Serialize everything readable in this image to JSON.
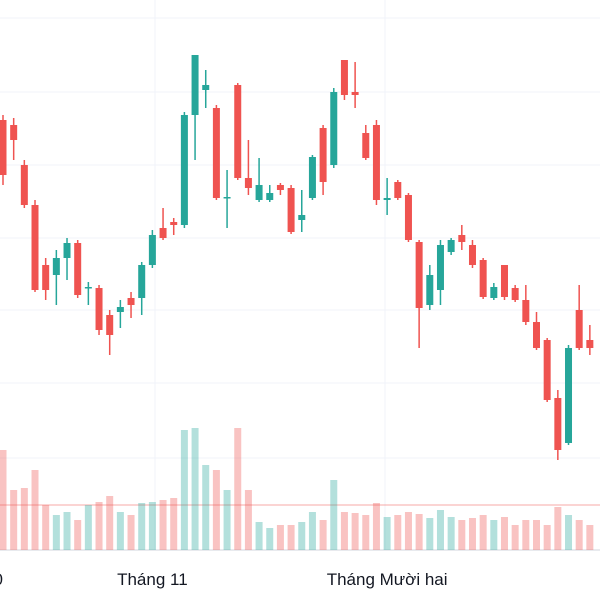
{
  "chart_data": {
    "type": "candlestick",
    "categories": [
      "0",
      null,
      null,
      null,
      null,
      null,
      null,
      null,
      null,
      null,
      null,
      null,
      null,
      null,
      "Tháng 11",
      null,
      null,
      null,
      null,
      null,
      null,
      null,
      null,
      null,
      null,
      null,
      null,
      null,
      null,
      null,
      null,
      null,
      null,
      null,
      null,
      null,
      "Tháng Mười hai",
      null,
      null,
      null,
      null,
      null,
      null,
      null,
      null,
      null,
      null,
      null,
      null,
      null,
      null,
      null,
      null,
      null,
      null,
      null
    ],
    "open": [
      480,
      475,
      435,
      395,
      335,
      325,
      342,
      357,
      312,
      312,
      285,
      288,
      302,
      302,
      335,
      372,
      378,
      375,
      485,
      510,
      492,
      402,
      515,
      422,
      400,
      400,
      415,
      412,
      380,
      402,
      472,
      435,
      540,
      508,
      467,
      475,
      400,
      418,
      405,
      358,
      295,
      310,
      348,
      365,
      355,
      340,
      302,
      335,
      312,
      300,
      278,
      260,
      202,
      157,
      290,
      260
    ],
    "high": [
      485,
      482,
      440,
      400,
      342,
      350,
      362,
      360,
      318,
      315,
      290,
      300,
      308,
      338,
      370,
      392,
      382,
      488,
      545,
      530,
      495,
      430,
      517,
      460,
      442,
      415,
      417,
      415,
      410,
      445,
      475,
      512,
      540,
      538,
      475,
      480,
      422,
      420,
      407,
      360,
      335,
      360,
      362,
      375,
      360,
      342,
      317,
      335,
      315,
      315,
      288,
      262,
      210,
      255,
      315,
      275
    ],
    "low": [
      415,
      440,
      392,
      308,
      300,
      295,
      320,
      302,
      295,
      265,
      245,
      272,
      282,
      285,
      332,
      360,
      365,
      372,
      440,
      492,
      400,
      372,
      420,
      405,
      398,
      398,
      405,
      366,
      368,
      400,
      405,
      432,
      500,
      492,
      440,
      395,
      385,
      400,
      358,
      252,
      290,
      295,
      345,
      350,
      332,
      301,
      300,
      300,
      298,
      275,
      250,
      198,
      140,
      155,
      250,
      245
    ],
    "close": [
      425,
      460,
      395,
      310,
      310,
      342,
      357,
      305,
      313,
      270,
      265,
      293,
      295,
      335,
      365,
      362,
      375,
      485,
      545,
      515,
      402,
      403,
      422,
      412,
      415,
      407,
      410,
      368,
      385,
      443,
      418,
      508,
      505,
      505,
      442,
      400,
      402,
      402,
      360,
      292,
      325,
      355,
      360,
      358,
      335,
      303,
      313,
      303,
      300,
      278,
      252,
      200,
      150,
      252,
      252,
      252
    ],
    "volume": [
      100,
      60,
      62,
      80,
      45,
      35,
      38,
      30,
      45,
      48,
      54,
      38,
      35,
      47,
      48,
      50,
      52,
      120,
      122,
      85,
      80,
      60,
      122,
      60,
      28,
      22,
      25,
      25,
      28,
      38,
      30,
      70,
      38,
      37,
      35,
      47,
      33,
      35,
      38,
      36,
      32,
      40,
      33,
      30,
      32,
      35,
      30,
      33,
      25,
      30,
      30,
      25,
      43,
      35,
      30,
      25
    ],
    "ylim": [
      0,
      600
    ],
    "volume_ylim": [
      0,
      550
    ],
    "up_color": "#26a69a",
    "down_color": "#ef5350"
  }
}
